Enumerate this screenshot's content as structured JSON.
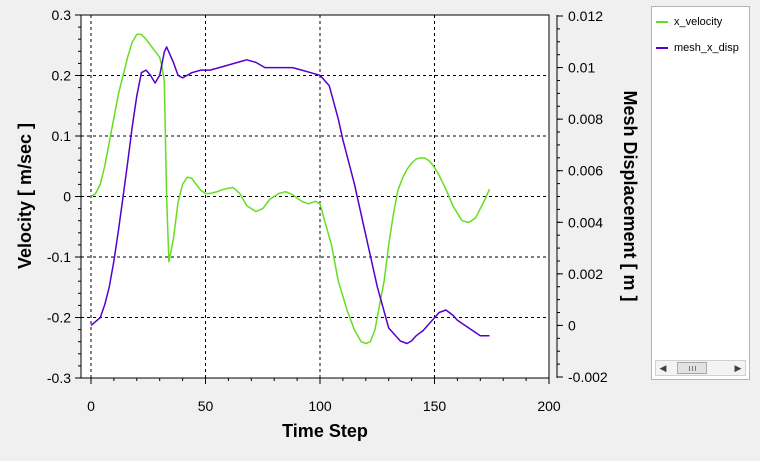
{
  "chart_data": {
    "type": "line",
    "title": "",
    "xlabel": "Time Step",
    "ylabel_left": "Velocity [ m/sec ]",
    "ylabel_right": "Mesh Displacement [ m ]",
    "xlim": [
      0,
      200
    ],
    "ylim_left": [
      -0.3,
      0.3
    ],
    "ylim_right": [
      -0.002,
      0.012
    ],
    "x_ticks": [
      "0",
      "50",
      "100",
      "150",
      "200"
    ],
    "y_left_ticks": [
      "0.3",
      "0.2",
      "0.1",
      "0",
      "-0.1",
      "-0.2",
      "-0.3"
    ],
    "y_right_ticks": [
      "0.012",
      "0.01",
      "0.008",
      "0.006",
      "0.004",
      "0.002",
      "0",
      "-0.002"
    ],
    "grid": true,
    "legend_position": "right",
    "series": [
      {
        "name": "x_velocity",
        "axis": "left",
        "color": "#66dd22",
        "x": [
          0,
          2,
          4,
          6,
          8,
          10,
          12,
          14,
          16,
          18,
          20,
          22,
          24,
          26,
          28,
          30,
          31,
          32,
          33,
          34,
          36,
          38,
          40,
          42,
          44,
          46,
          48,
          50,
          52,
          55,
          58,
          62,
          65,
          68,
          72,
          75,
          78,
          82,
          85,
          88,
          92,
          95,
          98,
          100,
          102,
          105,
          108,
          112,
          115,
          118,
          120,
          122,
          124,
          126,
          128,
          130,
          132,
          134,
          136,
          138,
          140,
          142,
          144,
          146,
          148,
          150,
          152,
          155,
          158,
          162,
          165,
          168,
          170,
          172,
          174
        ],
        "y": [
          0.0,
          0.005,
          0.02,
          0.05,
          0.09,
          0.13,
          0.17,
          0.2,
          0.23,
          0.255,
          0.268,
          0.268,
          0.26,
          0.25,
          0.24,
          0.23,
          0.215,
          0.19,
          0.0,
          -0.108,
          -0.07,
          -0.01,
          0.02,
          0.032,
          0.03,
          0.02,
          0.01,
          0.005,
          0.005,
          0.008,
          0.012,
          0.015,
          0.005,
          -0.015,
          -0.025,
          -0.02,
          -0.005,
          0.005,
          0.008,
          0.003,
          -0.008,
          -0.012,
          -0.008,
          -0.012,
          -0.04,
          -0.08,
          -0.14,
          -0.19,
          -0.22,
          -0.24,
          -0.243,
          -0.24,
          -0.22,
          -0.18,
          -0.14,
          -0.08,
          -0.03,
          0.01,
          0.03,
          0.045,
          0.055,
          0.062,
          0.064,
          0.063,
          0.058,
          0.048,
          0.035,
          0.012,
          -0.015,
          -0.04,
          -0.043,
          -0.035,
          -0.02,
          -0.005,
          0.012
        ]
      },
      {
        "name": "mesh_x_disp",
        "axis": "right",
        "color": "#5500cc",
        "x": [
          0,
          4,
          6,
          8,
          10,
          12,
          14,
          16,
          18,
          20,
          22,
          24,
          26,
          28,
          30,
          32,
          33,
          34,
          36,
          38,
          40,
          44,
          48,
          52,
          56,
          60,
          64,
          68,
          72,
          76,
          80,
          84,
          88,
          92,
          96,
          100,
          104,
          108,
          110,
          115,
          120,
          125,
          130,
          135,
          138,
          140,
          142,
          145,
          148,
          150,
          152,
          155,
          158,
          160,
          165,
          170,
          174
        ],
        "y": [
          0.0,
          0.0003,
          0.0008,
          0.0015,
          0.0025,
          0.0037,
          0.005,
          0.0063,
          0.0077,
          0.0089,
          0.0098,
          0.0099,
          0.0097,
          0.0094,
          0.0097,
          0.0106,
          0.0108,
          0.0106,
          0.0102,
          0.0097,
          0.0096,
          0.0098,
          0.0099,
          0.0099,
          0.01,
          0.0101,
          0.0102,
          0.0103,
          0.0102,
          0.01,
          0.01,
          0.01,
          0.01,
          0.0099,
          0.0098,
          0.0097,
          0.0093,
          0.008,
          0.0072,
          0.0055,
          0.0035,
          0.0015,
          -0.0001,
          -0.0006,
          -0.0007,
          -0.0006,
          -0.0004,
          -0.0002,
          0.0001,
          0.0003,
          0.0005,
          0.0006,
          0.0004,
          0.0002,
          -0.0001,
          -0.0004,
          -0.0004
        ]
      }
    ]
  },
  "legend": {
    "items": [
      {
        "label": "x_velocity",
        "color": "#66dd22"
      },
      {
        "label": "mesh_x_disp",
        "color": "#5500cc"
      }
    ]
  }
}
